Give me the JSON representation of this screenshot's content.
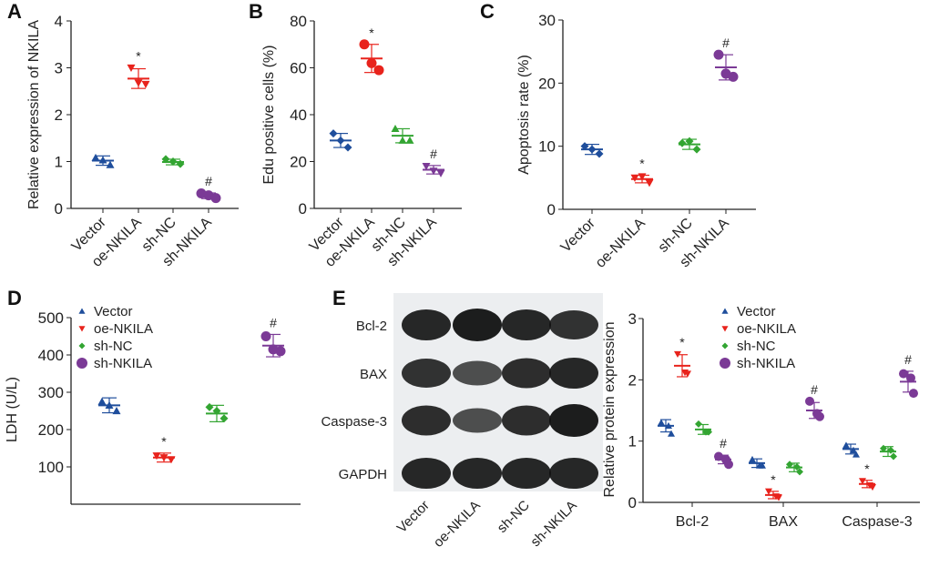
{
  "colors": {
    "Vector": "#1f4e9c",
    "oe-NKILA": "#e8231c",
    "sh-NC": "#33a532",
    "sh-NKILA": "#7b3a96",
    "axis": "#222222"
  },
  "groups": [
    "Vector",
    "oe-NKILA",
    "sh-NC",
    "sh-NKILA"
  ],
  "chart_data": [
    {
      "panel": "A",
      "type": "scatter",
      "ylabel": "Relative expression of NKILA",
      "ylim": [
        0,
        4
      ],
      "yticks": [
        0,
        1,
        2,
        3,
        4
      ],
      "categories": [
        "Vector",
        "oe-NKILA",
        "sh-NC",
        "sh-NKILA"
      ],
      "markers": [
        "triangle-up",
        "triangle-down",
        "diamond",
        "circle"
      ],
      "series": [
        {
          "name": "Vector",
          "points": [
            1.08,
            1.03,
            0.93
          ],
          "mean": 1.02,
          "sd": 0.1,
          "annotation": ""
        },
        {
          "name": "oe-NKILA",
          "points": [
            3.0,
            2.68,
            2.65
          ],
          "mean": 2.77,
          "sd": 0.21,
          "annotation": "*"
        },
        {
          "name": "sh-NC",
          "points": [
            1.05,
            1.0,
            0.95
          ],
          "mean": 0.99,
          "sd": 0.06,
          "annotation": ""
        },
        {
          "name": "sh-NKILA",
          "points": [
            0.32,
            0.28,
            0.22
          ],
          "mean": 0.27,
          "sd": 0.06,
          "annotation": "#"
        }
      ]
    },
    {
      "panel": "B",
      "type": "scatter",
      "ylabel": "Edu positive cells (%)",
      "ylim": [
        0,
        80
      ],
      "yticks": [
        0,
        20,
        40,
        60,
        80
      ],
      "categories": [
        "Vector",
        "oe-NKILA",
        "sh-NC",
        "sh-NKILA"
      ],
      "markers": [
        "diamond",
        "circle",
        "triangle-up",
        "triangle-down"
      ],
      "series": [
        {
          "name": "Vector",
          "points": [
            32,
            29,
            26
          ],
          "mean": 29,
          "sd": 3,
          "annotation": ""
        },
        {
          "name": "oe-NKILA",
          "points": [
            70,
            62,
            59
          ],
          "mean": 64,
          "sd": 6,
          "annotation": "*"
        },
        {
          "name": "sh-NC",
          "points": [
            34,
            29,
            29
          ],
          "mean": 31,
          "sd": 3,
          "annotation": ""
        },
        {
          "name": "sh-NKILA",
          "points": [
            18,
            16,
            15
          ],
          "mean": 16.5,
          "sd": 1.8,
          "annotation": "#"
        }
      ]
    },
    {
      "panel": "C",
      "type": "scatter",
      "ylabel": "Apoptosis rate (%)",
      "ylim": [
        0,
        30
      ],
      "yticks": [
        0,
        10,
        20,
        30
      ],
      "categories": [
        "Vector",
        "oe-NKILA",
        "sh-NC",
        "sh-NKILA"
      ],
      "markers": [
        "diamond",
        "triangle-down",
        "diamond",
        "circle"
      ],
      "series": [
        {
          "name": "Vector",
          "points": [
            10,
            9.5,
            8.8
          ],
          "mean": 9.5,
          "sd": 0.8,
          "annotation": ""
        },
        {
          "name": "oe-NKILA",
          "points": [
            5,
            5.2,
            4.2
          ],
          "mean": 4.8,
          "sd": 0.6,
          "annotation": "*"
        },
        {
          "name": "sh-NC",
          "points": [
            10.5,
            10.8,
            9.5
          ],
          "mean": 10.3,
          "sd": 0.8,
          "annotation": ""
        },
        {
          "name": "sh-NKILA",
          "points": [
            24.5,
            21.5,
            21
          ],
          "mean": 22.5,
          "sd": 2,
          "annotation": "#"
        }
      ]
    },
    {
      "panel": "D",
      "type": "scatter",
      "ylabel": "LDH  (U/L)",
      "ylim": [
        0,
        500
      ],
      "yticks": [
        100,
        200,
        300,
        400,
        500
      ],
      "categories": [],
      "legend": "top-left",
      "markers": [
        "triangle-up",
        "triangle-down",
        "diamond",
        "circle"
      ],
      "series": [
        {
          "name": "Vector",
          "points": [
            275,
            265,
            250
          ],
          "mean": 265,
          "sd": 20,
          "annotation": ""
        },
        {
          "name": "oe-NKILA",
          "points": [
            130,
            125,
            120
          ],
          "mean": 125,
          "sd": 12,
          "annotation": "*"
        },
        {
          "name": "sh-NC",
          "points": [
            260,
            250,
            230
          ],
          "mean": 243,
          "sd": 22,
          "annotation": ""
        },
        {
          "name": "sh-NKILA",
          "points": [
            450,
            415,
            410
          ],
          "mean": 425,
          "sd": 30,
          "annotation": "#"
        }
      ]
    },
    {
      "panel": "E",
      "type": "scatter",
      "ylabel": "Relative protein expression",
      "ylim": [
        0,
        3
      ],
      "yticks": [
        0,
        1,
        2,
        3
      ],
      "categories": [
        "Bcl-2",
        "BAX",
        "Caspase-3"
      ],
      "legend": "top-right",
      "markers": [
        "triangle-up",
        "triangle-down",
        "diamond",
        "circle"
      ],
      "series": [
        {
          "name": "Vector",
          "values": [
            {
              "points": [
                1.3,
                1.25,
                1.12
              ],
              "mean": 1.25,
              "sd": 0.1,
              "annotation": ""
            },
            {
              "points": [
                0.7,
                0.6,
                0.6
              ],
              "mean": 0.64,
              "sd": 0.07,
              "annotation": ""
            },
            {
              "points": [
                0.93,
                0.85,
                0.78
              ],
              "mean": 0.87,
              "sd": 0.08,
              "annotation": ""
            }
          ]
        },
        {
          "name": "oe-NKILA",
          "values": [
            {
              "points": [
                2.42,
                2.12,
                2.1
              ],
              "mean": 2.23,
              "sd": 0.18,
              "annotation": "*"
            },
            {
              "points": [
                0.18,
                0.1,
                0.08
              ],
              "mean": 0.12,
              "sd": 0.06,
              "annotation": "*"
            },
            {
              "points": [
                0.35,
                0.28,
                0.25
              ],
              "mean": 0.3,
              "sd": 0.06,
              "annotation": "*"
            }
          ]
        },
        {
          "name": "sh-NC",
          "values": [
            {
              "points": [
                1.28,
                1.15,
                1.15
              ],
              "mean": 1.19,
              "sd": 0.08,
              "annotation": ""
            },
            {
              "points": [
                0.62,
                0.58,
                0.5
              ],
              "mean": 0.57,
              "sd": 0.07,
              "annotation": ""
            },
            {
              "points": [
                0.88,
                0.85,
                0.75
              ],
              "mean": 0.83,
              "sd": 0.08,
              "annotation": ""
            }
          ]
        },
        {
          "name": "sh-NKILA",
          "values": [
            {
              "points": [
                0.75,
                0.7,
                0.62
              ],
              "mean": 0.7,
              "sd": 0.07,
              "annotation": "#"
            },
            {
              "points": [
                1.65,
                1.45,
                1.4
              ],
              "mean": 1.5,
              "sd": 0.13,
              "annotation": "#"
            },
            {
              "points": [
                2.1,
                2.03,
                1.78
              ],
              "mean": 1.97,
              "sd": 0.17,
              "annotation": "#"
            }
          ]
        }
      ]
    }
  ],
  "blot": {
    "panel": "E",
    "rows": [
      "Bcl-2",
      "BAX",
      "Caspase-3",
      "GAPDH"
    ],
    "lanes": [
      "Vector",
      "oe-NKILA",
      "sh-NC",
      "sh-NKILA"
    ],
    "band_intensity": [
      [
        0.9,
        1.0,
        0.9,
        0.8
      ],
      [
        0.8,
        0.55,
        0.85,
        0.9
      ],
      [
        0.85,
        0.55,
        0.85,
        1.0
      ],
      [
        0.9,
        0.9,
        0.9,
        0.9
      ]
    ]
  }
}
